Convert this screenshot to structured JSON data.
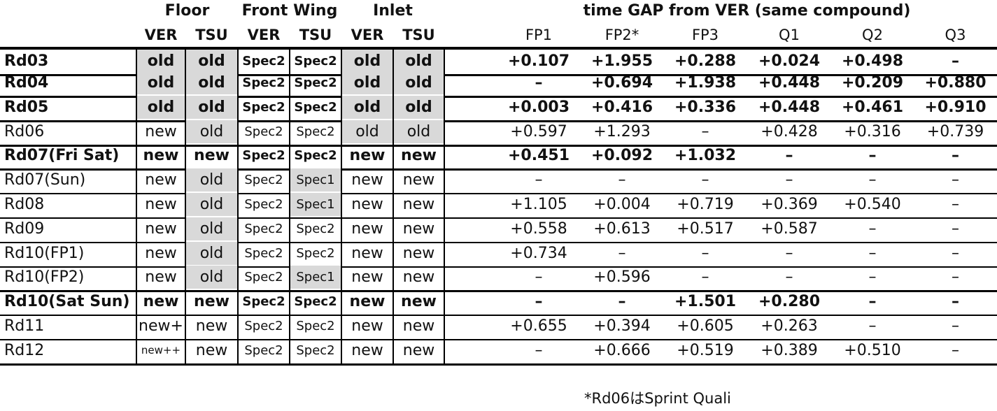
{
  "header": {
    "group_floor": "Floor",
    "group_front_wing": "Front Wing",
    "group_inlet": "Inlet",
    "group_gap": "time GAP from VER (same compound)",
    "sub_ver": "VER",
    "sub_tsu": "TSU",
    "sessions": [
      "FP1",
      "FP2*",
      "FP3",
      "Q1",
      "Q2",
      "Q3"
    ]
  },
  "rows": [
    {
      "label": "Rd03",
      "floor_ver": "old",
      "floor_tsu": "old",
      "fw_ver": "Spec2",
      "fw_tsu": "Spec2",
      "inlet_ver": "old",
      "inlet_tsu": "old",
      "fp1": "+0.107",
      "fp2": "+1.955",
      "fp3": "+0.288",
      "q1": "+0.024",
      "q2": "+0.498",
      "q3": "–"
    },
    {
      "label": "Rd04",
      "floor_ver": "old",
      "floor_tsu": "old",
      "fw_ver": "Spec2",
      "fw_tsu": "Spec2",
      "inlet_ver": "old",
      "inlet_tsu": "old",
      "fp1": "–",
      "fp2": "+0.694",
      "fp3": "+1.938",
      "q1": "+0.448",
      "q2": "+0.209",
      "q3": "+0.880"
    },
    {
      "label": "Rd05",
      "floor_ver": "old",
      "floor_tsu": "old",
      "fw_ver": "Spec2",
      "fw_tsu": "Spec2",
      "inlet_ver": "old",
      "inlet_tsu": "old",
      "fp1": "+0.003",
      "fp2": "+0.416",
      "fp3": "+0.336",
      "q1": "+0.448",
      "q2": "+0.461",
      "q3": "+0.910"
    },
    {
      "label": "Rd06",
      "floor_ver": "new",
      "floor_tsu": "old",
      "fw_ver": "Spec2",
      "fw_tsu": "Spec2",
      "inlet_ver": "old",
      "inlet_tsu": "old",
      "fp1": "+0.597",
      "fp2": "+1.293",
      "fp3": "–",
      "q1": "+0.428",
      "q2": "+0.316",
      "q3": "+0.739"
    },
    {
      "label": "Rd07(Fri Sat)",
      "floor_ver": "new",
      "floor_tsu": "new",
      "fw_ver": "Spec2",
      "fw_tsu": "Spec2",
      "inlet_ver": "new",
      "inlet_tsu": "new",
      "fp1": "+0.451",
      "fp2": "+0.092",
      "fp3": "+1.032",
      "q1": "–",
      "q2": "–",
      "q3": "–"
    },
    {
      "label": "Rd07(Sun)",
      "floor_ver": "new",
      "floor_tsu": "old",
      "fw_ver": "Spec2",
      "fw_tsu": "Spec1",
      "inlet_ver": "new",
      "inlet_tsu": "new",
      "fp1": "–",
      "fp2": "–",
      "fp3": "–",
      "q1": "–",
      "q2": "–",
      "q3": "–"
    },
    {
      "label": "Rd08",
      "floor_ver": "new",
      "floor_tsu": "old",
      "fw_ver": "Spec2",
      "fw_tsu": "Spec1",
      "inlet_ver": "new",
      "inlet_tsu": "new",
      "fp1": "+1.105",
      "fp2": "+0.004",
      "fp3": "+0.719",
      "q1": "+0.369",
      "q2": "+0.540",
      "q3": "–"
    },
    {
      "label": "Rd09",
      "floor_ver": "new",
      "floor_tsu": "old",
      "fw_ver": "Spec2",
      "fw_tsu": "Spec2",
      "inlet_ver": "new",
      "inlet_tsu": "new",
      "fp1": "+0.558",
      "fp2": "+0.613",
      "fp3": "+0.517",
      "q1": "+0.587",
      "q2": "–",
      "q3": "–"
    },
    {
      "label": "Rd10(FP1)",
      "floor_ver": "new",
      "floor_tsu": "old",
      "fw_ver": "Spec2",
      "fw_tsu": "Spec2",
      "inlet_ver": "new",
      "inlet_tsu": "new",
      "fp1": "+0.734",
      "fp2": "–",
      "fp3": "–",
      "q1": "–",
      "q2": "–",
      "q3": "–"
    },
    {
      "label": "Rd10(FP2)",
      "floor_ver": "new",
      "floor_tsu": "old",
      "fw_ver": "Spec2",
      "fw_tsu": "Spec1",
      "inlet_ver": "new",
      "inlet_tsu": "new",
      "fp1": "–",
      "fp2": "+0.596",
      "fp3": "–",
      "q1": "–",
      "q2": "–",
      "q3": "–"
    },
    {
      "label": "Rd10(Sat Sun)",
      "floor_ver": "new",
      "floor_tsu": "new",
      "fw_ver": "Spec2",
      "fw_tsu": "Spec2",
      "inlet_ver": "new",
      "inlet_tsu": "new",
      "fp1": "–",
      "fp2": "–",
      "fp3": "+1.501",
      "q1": "+0.280",
      "q2": "–",
      "q3": "–"
    },
    {
      "label": "Rd11",
      "floor_ver": "new+",
      "floor_tsu": "new",
      "fw_ver": "Spec2",
      "fw_tsu": "Spec2",
      "inlet_ver": "new",
      "inlet_tsu": "new",
      "fp1": "+0.655",
      "fp2": "+0.394",
      "fp3": "+0.605",
      "q1": "+0.263",
      "q2": "–",
      "q3": "–"
    },
    {
      "label": "Rd12",
      "floor_ver": "new++",
      "floor_tsu": "new",
      "fw_ver": "Spec2",
      "fw_tsu": "Spec2",
      "inlet_ver": "new",
      "inlet_tsu": "new",
      "fp1": "–",
      "fp2": "+0.666",
      "fp3": "+0.519",
      "q1": "+0.389",
      "q2": "+0.510",
      "q3": "–"
    }
  ],
  "footnote": "*Rd06はSprint Quali"
}
